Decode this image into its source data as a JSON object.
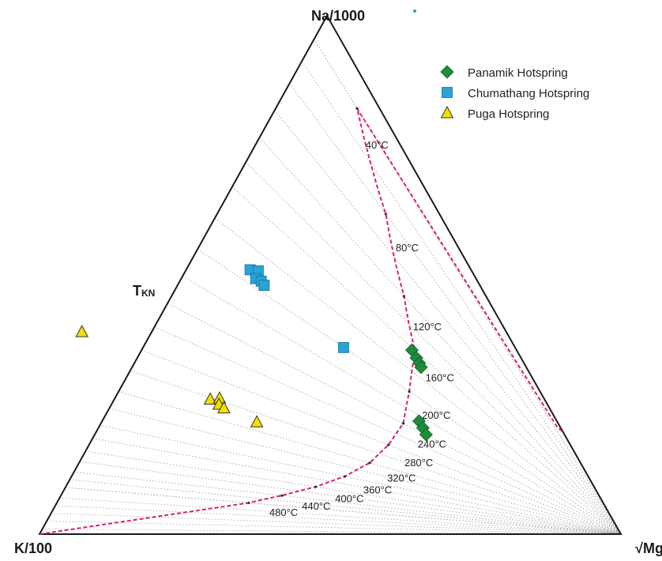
{
  "vertices": {
    "top": "Na/1000",
    "left": "K/100",
    "right": "√Mg"
  },
  "side_label": {
    "main": "T",
    "sub": "KN"
  },
  "colors": {
    "triangle": "#1a1a1a",
    "isotherm": "#9a9a9a",
    "equilibrium_curve": "#d4207a",
    "panamik": "#1e8c3a",
    "chumathang": "#29a3d8",
    "puga": "#f2e000"
  },
  "chart_data": {
    "type": "scatter",
    "diagram": "Giggenbach Na-K-Mg ternary diagram",
    "isotherms": [
      {
        "label": "40°C",
        "t": 40
      },
      {
        "label": "80°C",
        "t": 80
      },
      {
        "label": "120°C",
        "t": 120
      },
      {
        "label": "160°C",
        "t": 160
      },
      {
        "label": "200°C",
        "t": 200
      },
      {
        "label": "240°C",
        "t": 240
      },
      {
        "label": "280°C",
        "t": 280
      },
      {
        "label": "320°C",
        "t": 320
      },
      {
        "label": "360°C",
        "t": 360
      },
      {
        "label": "400°C",
        "t": 400
      },
      {
        "label": "440°C",
        "t": 440
      },
      {
        "label": "480°C",
        "t": 480
      }
    ],
    "series": [
      {
        "name": "Panamik Hotspring",
        "marker": "diamond",
        "points": [
          {
            "na_frac": 0.355,
            "mg_frac": 0.465
          },
          {
            "na_frac": 0.34,
            "mg_frac": 0.48
          },
          {
            "na_frac": 0.33,
            "mg_frac": 0.49
          },
          {
            "na_frac": 0.322,
            "mg_frac": 0.497
          },
          {
            "na_frac": 0.218,
            "mg_frac": 0.545
          },
          {
            "na_frac": 0.205,
            "mg_frac": 0.558
          },
          {
            "na_frac": 0.192,
            "mg_frac": 0.57
          }
        ]
      },
      {
        "name": "Chumathang Hotspring",
        "marker": "square",
        "points": [
          {
            "na_frac": 0.51,
            "mg_frac": 0.11
          },
          {
            "na_frac": 0.508,
            "mg_frac": 0.125
          },
          {
            "na_frac": 0.493,
            "mg_frac": 0.128
          },
          {
            "na_frac": 0.488,
            "mg_frac": 0.14
          },
          {
            "na_frac": 0.48,
            "mg_frac": 0.149
          },
          {
            "na_frac": 0.36,
            "mg_frac": 0.345
          }
        ]
      },
      {
        "name": "Puga Hotspring",
        "marker": "triangle",
        "points": [
          {
            "na_frac": 0.39,
            "mg_frac": -0.12
          },
          {
            "na_frac": 0.26,
            "mg_frac": 0.165
          },
          {
            "na_frac": 0.262,
            "mg_frac": 0.18
          },
          {
            "na_frac": 0.25,
            "mg_frac": 0.185
          },
          {
            "na_frac": 0.243,
            "mg_frac": 0.197
          },
          {
            "na_frac": 0.216,
            "mg_frac": 0.267
          }
        ]
      }
    ],
    "legend": {
      "position": "top-right"
    },
    "grid": false
  }
}
